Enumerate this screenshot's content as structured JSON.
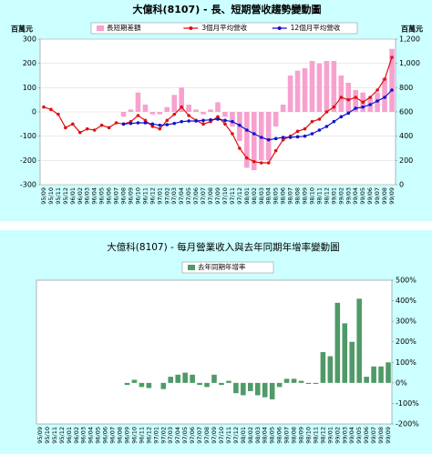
{
  "chart_data": [
    {
      "type": "bar_line",
      "title": "大億科(8107) - 長、短期營收趨勢變動圖",
      "y_label": "百萬元",
      "y2_label": "百萬元",
      "categories": [
        "95/09",
        "95/10",
        "95/11",
        "95/12",
        "96/01",
        "96/02",
        "96/03",
        "96/04",
        "96/05",
        "96/06",
        "96/07",
        "96/08",
        "96/09",
        "96/10",
        "96/11",
        "96/12",
        "97/01",
        "97/02",
        "97/03",
        "97/04",
        "97/05",
        "97/06",
        "97/07",
        "97/08",
        "97/09",
        "97/10",
        "97/11",
        "97/12",
        "98/01",
        "98/02",
        "98/03",
        "98/04",
        "98/05",
        "98/06",
        "98/07",
        "98/08",
        "98/09",
        "98/10",
        "98/11",
        "98/12",
        "99/01",
        "99/02",
        "99/03",
        "99/04",
        "99/05",
        "99/06",
        "99/07",
        "99/08",
        "99/09"
      ],
      "series": [
        {
          "name": "長短期差額",
          "color": "#f7a1cf",
          "type": "bar",
          "values": [
            null,
            null,
            null,
            null,
            null,
            null,
            null,
            null,
            null,
            null,
            null,
            -20,
            10,
            80,
            30,
            -10,
            -10,
            20,
            70,
            100,
            30,
            10,
            -10,
            10,
            40,
            -20,
            -60,
            -120,
            -230,
            -240,
            -200,
            -200,
            -60,
            30,
            150,
            170,
            180,
            210,
            200,
            210,
            210,
            150,
            120,
            90,
            80,
            60,
            80,
            140,
            260
          ]
        },
        {
          "name": "3個月平均營收",
          "color": "#dd1111",
          "type": "line",
          "axis": "y2",
          "values": [
            640,
            620,
            580,
            470,
            500,
            430,
            460,
            450,
            490,
            470,
            510,
            500,
            520,
            570,
            530,
            480,
            460,
            530,
            580,
            640,
            570,
            530,
            500,
            520,
            560,
            500,
            420,
            300,
            220,
            190,
            180,
            180,
            280,
            370,
            400,
            440,
            460,
            520,
            540,
            600,
            640,
            720,
            700,
            720,
            680,
            720,
            780,
            870,
            1050
          ]
        },
        {
          "name": "12個月平均營收",
          "color": "#1111cc",
          "type": "line",
          "axis": "y2",
          "values": [
            null,
            null,
            null,
            null,
            null,
            null,
            null,
            null,
            null,
            null,
            null,
            500,
            505,
            510,
            510,
            500,
            490,
            495,
            505,
            520,
            525,
            525,
            530,
            535,
            540,
            530,
            520,
            490,
            450,
            420,
            390,
            370,
            380,
            390,
            390,
            395,
            400,
            420,
            450,
            480,
            520,
            560,
            590,
            630,
            640,
            660,
            690,
            720,
            780
          ]
        }
      ],
      "ylim": [
        -300,
        300
      ],
      "yticks": [
        -300,
        -200,
        -100,
        0,
        100,
        200,
        300
      ],
      "y2lim": [
        0,
        1200
      ],
      "y2ticks": [
        0,
        200,
        400,
        600,
        800,
        {
          "value": 1000,
          "label": "1,000"
        },
        {
          "value": 1200,
          "label": "1,200"
        }
      ],
      "grid": true
    },
    {
      "type": "bar",
      "title": "大億科(8107) - 每月營業收入與去年同期年增率變動圖",
      "categories": [
        "95/09",
        "95/10",
        "95/11",
        "95/12",
        "96/01",
        "96/02",
        "96/03",
        "96/04",
        "96/05",
        "96/06",
        "96/07",
        "96/08",
        "96/09",
        "96/10",
        "96/11",
        "96/12",
        "97/01",
        "97/02",
        "97/03",
        "97/04",
        "97/05",
        "97/06",
        "97/07",
        "97/08",
        "97/09",
        "97/10",
        "97/11",
        "97/12",
        "98/01",
        "98/02",
        "98/03",
        "98/04",
        "98/05",
        "98/06",
        "98/07",
        "98/08",
        "98/09",
        "98/10",
        "98/11",
        "98/12",
        "99/01",
        "99/02",
        "99/03",
        "99/04",
        "99/05",
        "99/06",
        "99/07",
        "99/08",
        "99/09"
      ],
      "series": [
        {
          "name": "去年同期年增率",
          "color": "#4f9a68",
          "type": "bar",
          "axis": "y2",
          "values": [
            null,
            null,
            null,
            null,
            null,
            null,
            null,
            null,
            null,
            null,
            null,
            null,
            -10,
            15,
            -20,
            -25,
            0,
            -30,
            30,
            40,
            50,
            40,
            -10,
            -20,
            40,
            -10,
            10,
            -50,
            -60,
            -40,
            -60,
            -70,
            -80,
            -20,
            20,
            20,
            10,
            -5,
            -5,
            150,
            130,
            390,
            290,
            200,
            410,
            30,
            80,
            80,
            100
          ]
        }
      ],
      "y2lim": [
        -200,
        500
      ],
      "y2ticks": [
        {
          "value": -200,
          "label": "-200%"
        },
        {
          "value": -100,
          "label": "-100%"
        },
        {
          "value": 0,
          "label": "0%"
        },
        {
          "value": 100,
          "label": "100%"
        },
        {
          "value": 200,
          "label": "200%"
        },
        {
          "value": 300,
          "label": "300%"
        },
        {
          "value": 400,
          "label": "400%"
        },
        {
          "value": 500,
          "label": "500%"
        }
      ],
      "grid": false
    }
  ]
}
